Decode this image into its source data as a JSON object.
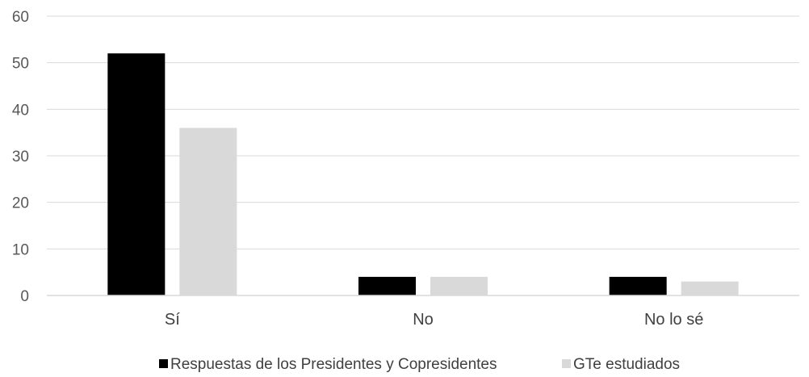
{
  "chart_data": {
    "type": "bar",
    "categories": [
      "Sí",
      "No",
      "No lo sé"
    ],
    "series": [
      {
        "name": "Respuestas de los Presidentes y Copresidentes",
        "values": [
          52,
          4,
          4
        ],
        "color": "#000000"
      },
      {
        "name": "GTe estudiados",
        "values": [
          36,
          4,
          3
        ],
        "color": "#d9d9d9"
      }
    ],
    "yticks": [
      "0",
      "10",
      "20",
      "30",
      "40",
      "50",
      "60"
    ],
    "ylim": [
      0,
      60
    ],
    "grid": true,
    "legend_position": "bottom"
  }
}
